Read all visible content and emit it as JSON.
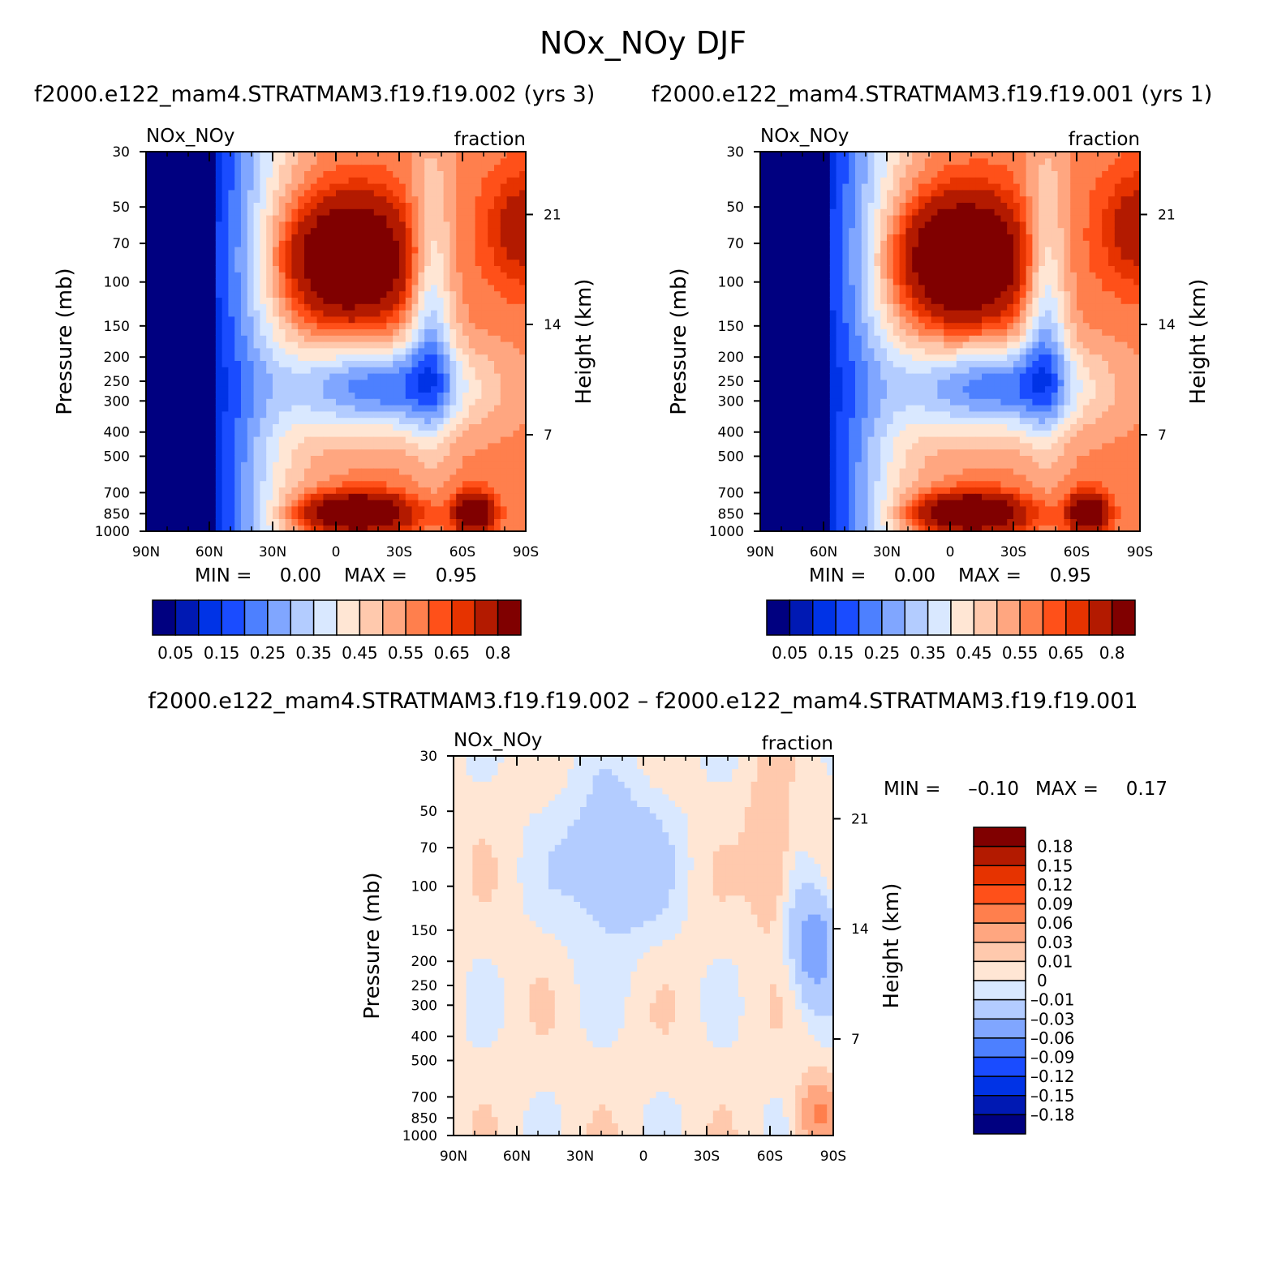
{
  "title": "NOx_NOy DJF",
  "colors": {
    "seq": [
      "#000080",
      "#0019b3",
      "#0033e6",
      "#1a4cff",
      "#4d80ff",
      "#80a6ff",
      "#b3ccff",
      "#d9e8ff",
      "#ffe6d4",
      "#ffc9ad",
      "#ffa680",
      "#ff7f4d",
      "#ff5019",
      "#e63300",
      "#b31a00",
      "#800000"
    ],
    "div": [
      "#000080",
      "#0019b3",
      "#0033e6",
      "#1a4cff",
      "#4d80ff",
      "#80a6ff",
      "#b3ccff",
      "#d9e8ff",
      "#ffe6d4",
      "#ffc9ad",
      "#ffa680",
      "#ff7f4d",
      "#ff5019",
      "#e63300",
      "#b31a00",
      "#800000"
    ]
  },
  "chart_data": [
    {
      "type": "heatmap",
      "title": "f2000.e122_mam4.STRATMAM3.f19.f19.002 (yrs 3)",
      "left_label": "NOx_NOy",
      "right_label": "fraction",
      "xlabel": "",
      "ylabel": "Pressure (mb)",
      "y2label": "Height (km)",
      "x_range": [
        90,
        -90
      ],
      "y_range": [
        1000,
        30
      ],
      "x_ticks": [
        {
          "v": 90,
          "t": "90N"
        },
        {
          "v": 60,
          "t": "60N"
        },
        {
          "v": 30,
          "t": "30N"
        },
        {
          "v": 0,
          "t": "0"
        },
        {
          "v": -30,
          "t": "30S"
        },
        {
          "v": -60,
          "t": "60S"
        },
        {
          "v": -90,
          "t": "90S"
        }
      ],
      "y_ticks": [
        30,
        50,
        70,
        100,
        150,
        200,
        250,
        300,
        400,
        500,
        700,
        850,
        1000
      ],
      "y2_ticks": [
        {
          "p": 53.6,
          "t": "21"
        },
        {
          "p": 148,
          "t": "14"
        },
        {
          "p": 410,
          "t": "7"
        }
      ],
      "min_max": {
        "min_label": "MIN =",
        "min": "0.00",
        "max_label": "MAX =",
        "max": "0.95"
      },
      "colorbar": {
        "orientation": "horizontal",
        "labels": [
          "0.05",
          "0.15",
          "0.25",
          "0.35",
          "0.45",
          "0.55",
          "0.65",
          "0.8"
        ]
      },
      "palette": "seq"
    },
    {
      "type": "heatmap",
      "title": "f2000.e122_mam4.STRATMAM3.f19.f19.001 (yrs 1)",
      "left_label": "NOx_NOy",
      "right_label": "fraction",
      "xlabel": "",
      "ylabel": "Pressure (mb)",
      "y2label": "Height (km)",
      "x_range": [
        90,
        -90
      ],
      "y_range": [
        1000,
        30
      ],
      "x_ticks": [
        {
          "v": 90,
          "t": "90N"
        },
        {
          "v": 60,
          "t": "60N"
        },
        {
          "v": 30,
          "t": "30N"
        },
        {
          "v": 0,
          "t": "0"
        },
        {
          "v": -30,
          "t": "30S"
        },
        {
          "v": -60,
          "t": "60S"
        },
        {
          "v": -90,
          "t": "90S"
        }
      ],
      "y_ticks": [
        30,
        50,
        70,
        100,
        150,
        200,
        250,
        300,
        400,
        500,
        700,
        850,
        1000
      ],
      "y2_ticks": [
        {
          "p": 53.6,
          "t": "21"
        },
        {
          "p": 148,
          "t": "14"
        },
        {
          "p": 410,
          "t": "7"
        }
      ],
      "min_max": {
        "min_label": "MIN =",
        "min": "0.00",
        "max_label": "MAX =",
        "max": "0.95"
      },
      "colorbar": {
        "orientation": "horizontal",
        "labels": [
          "0.05",
          "0.15",
          "0.25",
          "0.35",
          "0.45",
          "0.55",
          "0.65",
          "0.8"
        ]
      },
      "palette": "seq"
    },
    {
      "type": "heatmap",
      "title": "f2000.e122_mam4.STRATMAM3.f19.f19.002 – f2000.e122_mam4.STRATMAM3.f19.f19.001",
      "left_label": "NOx_NOy",
      "right_label": "fraction",
      "xlabel": "",
      "ylabel": "Pressure (mb)",
      "y2label": "Height (km)",
      "x_range": [
        90,
        -90
      ],
      "y_range": [
        1000,
        30
      ],
      "x_ticks": [
        {
          "v": 90,
          "t": "90N"
        },
        {
          "v": 60,
          "t": "60N"
        },
        {
          "v": 30,
          "t": "30N"
        },
        {
          "v": 0,
          "t": "0"
        },
        {
          "v": -30,
          "t": "30S"
        },
        {
          "v": -60,
          "t": "60S"
        },
        {
          "v": -90,
          "t": "90S"
        }
      ],
      "y_ticks": [
        30,
        50,
        70,
        100,
        150,
        200,
        250,
        300,
        400,
        500,
        700,
        850,
        1000
      ],
      "y2_ticks": [
        {
          "p": 53.6,
          "t": "21"
        },
        {
          "p": 148,
          "t": "14"
        },
        {
          "p": 410,
          "t": "7"
        }
      ],
      "min_max": {
        "min_label": "MIN =",
        "min": "–0.10",
        "max_label": "MAX =",
        "max": "0.17"
      },
      "colorbar": {
        "orientation": "vertical",
        "labels": [
          "0.18",
          "0.15",
          "0.12",
          "0.09",
          "0.06",
          "0.03",
          "0.01",
          "0",
          "–0.01",
          "–0.03",
          "–0.06",
          "–0.09",
          "–0.12",
          "–0.15",
          "–0.18"
        ]
      },
      "palette": "div"
    }
  ]
}
